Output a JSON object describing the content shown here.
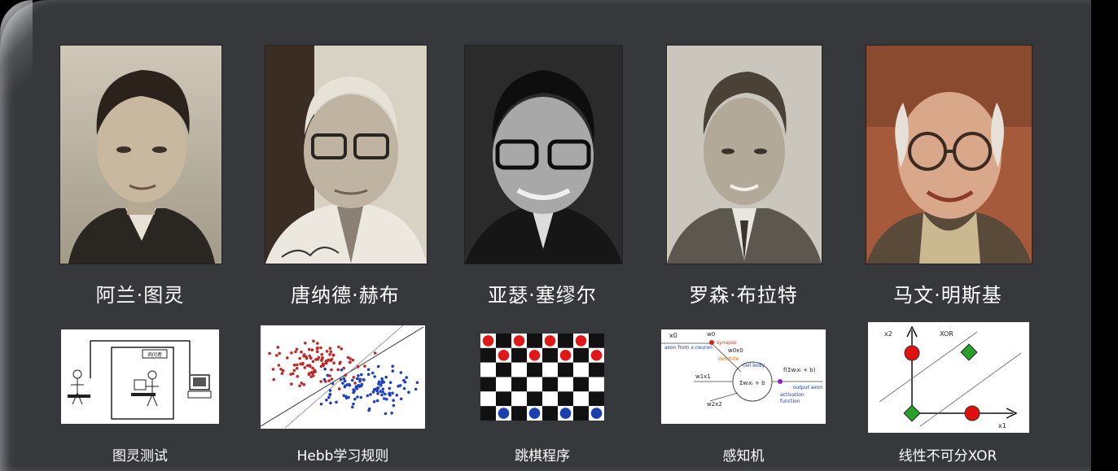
{
  "people": [
    {
      "name": "阿兰·图灵",
      "topic": "图灵测试"
    },
    {
      "name": "唐纳德·赫布",
      "topic": "Hebb学习规则"
    },
    {
      "name": "亚瑟·塞缪尔",
      "topic": "跳棋程序"
    },
    {
      "name": "罗森·布拉特",
      "topic": "感知机"
    },
    {
      "name": "马文·明斯基",
      "topic": "线性不可分XOR"
    }
  ],
  "diagram_labels": {
    "turing_box": "询问者",
    "xor_title": "XOR",
    "xor_x1": "x1",
    "xor_x2": "x2",
    "perceptron_x0": "x0",
    "perceptron_w0": "w0",
    "perceptron_synapse": "synapse",
    "perceptron_axon_from": "axon from a neuron",
    "perceptron_w0x0": "w0x0",
    "perceptron_dendrite": "dendrite",
    "perceptron_cell_body": "cell body",
    "perceptron_w1x1": "w1x1",
    "perceptron_w2x2": "w2x2",
    "perceptron_output_axon": "output axon",
    "perceptron_activation": "activation",
    "perceptron_function": "function"
  }
}
